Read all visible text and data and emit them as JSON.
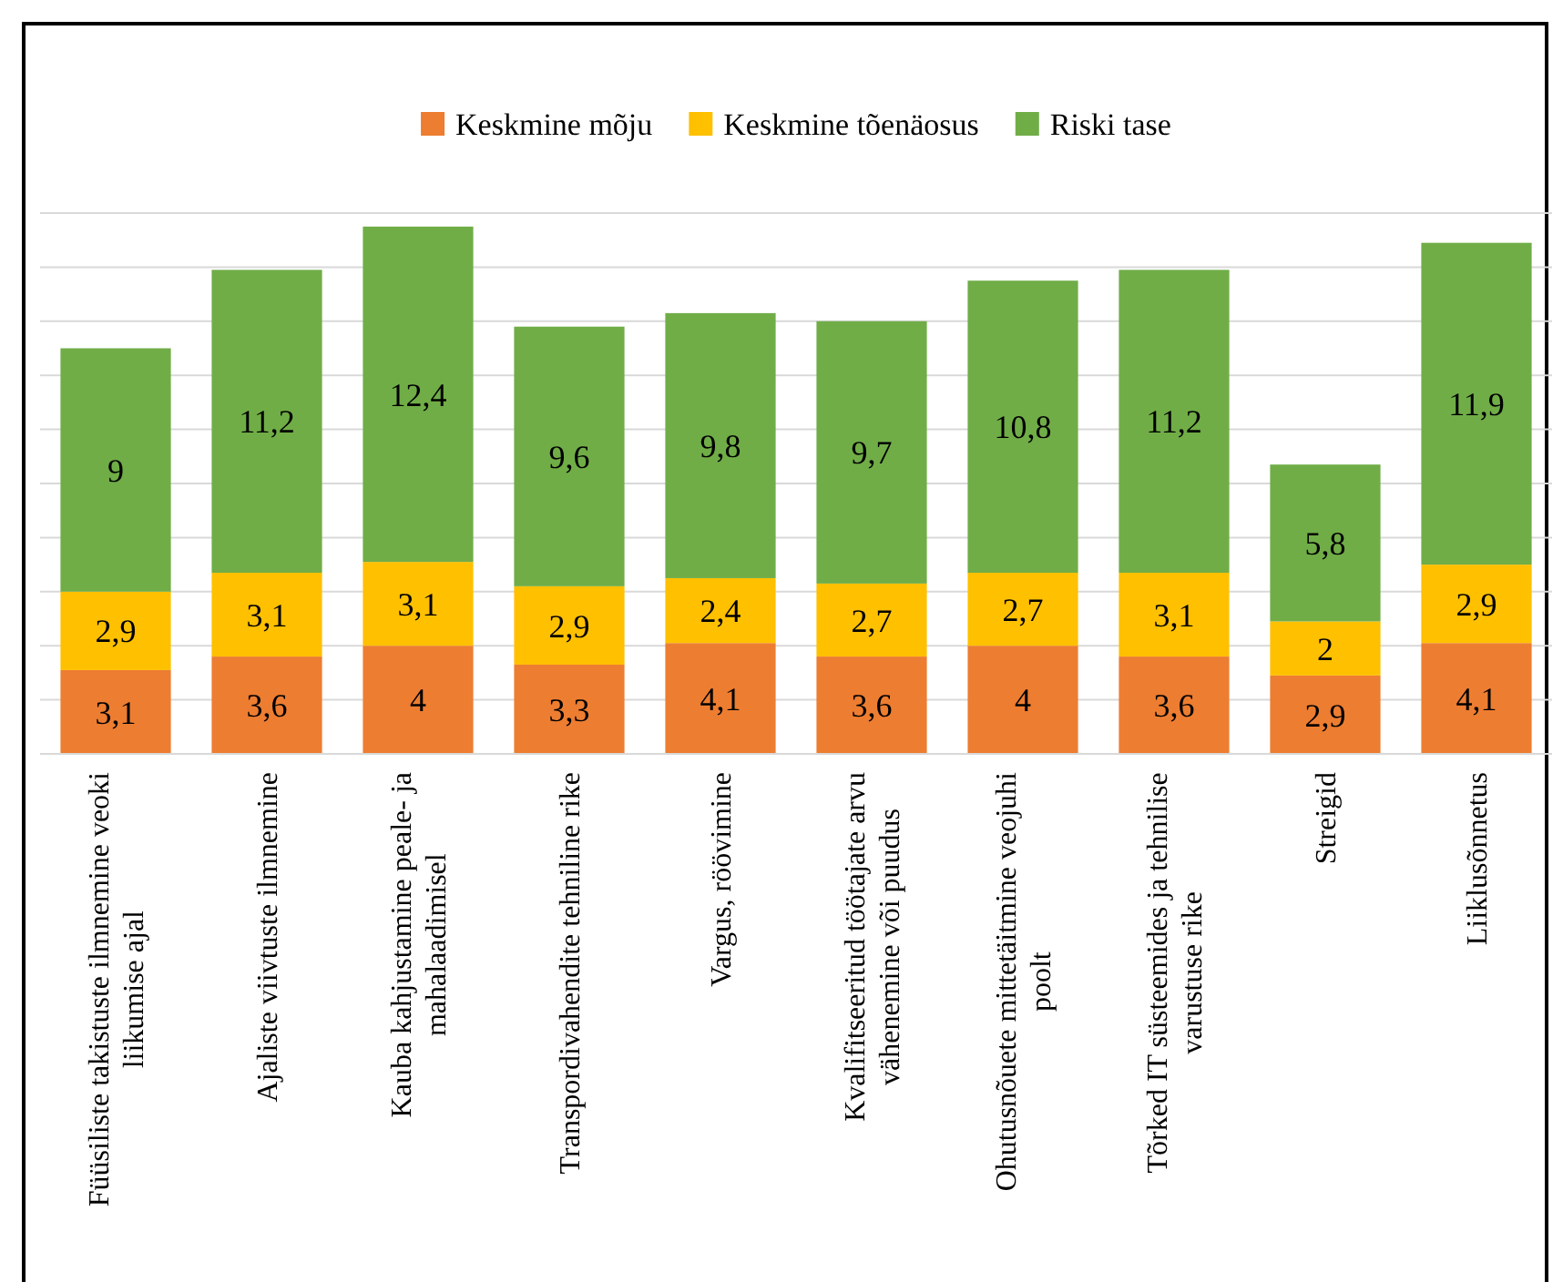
{
  "chart_data": {
    "type": "bar",
    "stacked": true,
    "legend": "top",
    "grid": "y",
    "tick_labels": "x",
    "ylim": [
      0,
      20
    ],
    "yticks": [
      {
        "value": 0,
        "label": null
      },
      {
        "value": 2,
        "label": null
      },
      {
        "value": 4,
        "label": null
      },
      {
        "value": 6,
        "label": null
      },
      {
        "value": 8,
        "label": null
      },
      {
        "value": 10,
        "label": null
      },
      {
        "value": 12,
        "label": null
      },
      {
        "value": 14,
        "label": null
      },
      {
        "value": 16,
        "label": null
      },
      {
        "value": 18,
        "label": null
      },
      {
        "value": 20,
        "label": null
      }
    ],
    "categories": [
      "Füüsiliste takistuste ilmnemine veoki liikumise ajal",
      "Ajaliste viivtuste ilmnemine",
      "Kauba kahjustamine peale- ja mahalaadimisel",
      "Transpordivahendite tehniline rike",
      "Vargus, röövimine",
      "Kvalifitseeritud töötajate arvu vähenemine või puudus",
      "Ohutusnõuete mittetäitmine veojuhi poolt",
      "Tõrked IT süsteemides ja tehnilise varustuse rike",
      "Streigid",
      "Liiklusõnnetus"
    ],
    "series": [
      {
        "name": "Keskmine mõju",
        "color": "#ed7d31",
        "values": [
          3.1,
          3.6,
          4,
          3.3,
          4.1,
          3.6,
          4,
          3.6,
          2.9,
          4.1
        ],
        "value_labels": [
          "3,1",
          "3,6",
          "4",
          "3,3",
          "4,1",
          "3,6",
          "4",
          "3,6",
          "2,9",
          "4,1"
        ]
      },
      {
        "name": "Keskmine tõenäosus",
        "color": "#ffc000",
        "values": [
          2.9,
          3.1,
          3.1,
          2.9,
          2.4,
          2.7,
          2.7,
          3.1,
          2,
          2.9
        ],
        "value_labels": [
          "2,9",
          "3,1",
          "3,1",
          "2,9",
          "2,4",
          "2,7",
          "2,7",
          "3,1",
          "2",
          "2,9"
        ]
      },
      {
        "name": "Riski tase",
        "color": "#70ad47",
        "values": [
          9,
          11.2,
          12.4,
          9.6,
          9.8,
          9.7,
          10.8,
          11.2,
          5.8,
          11.9
        ],
        "value_labels": [
          "9",
          "11,2",
          "12,4",
          "9,6",
          "9,8",
          "9,7",
          "10,8",
          "11,2",
          "5,8",
          "11,9"
        ]
      }
    ]
  }
}
